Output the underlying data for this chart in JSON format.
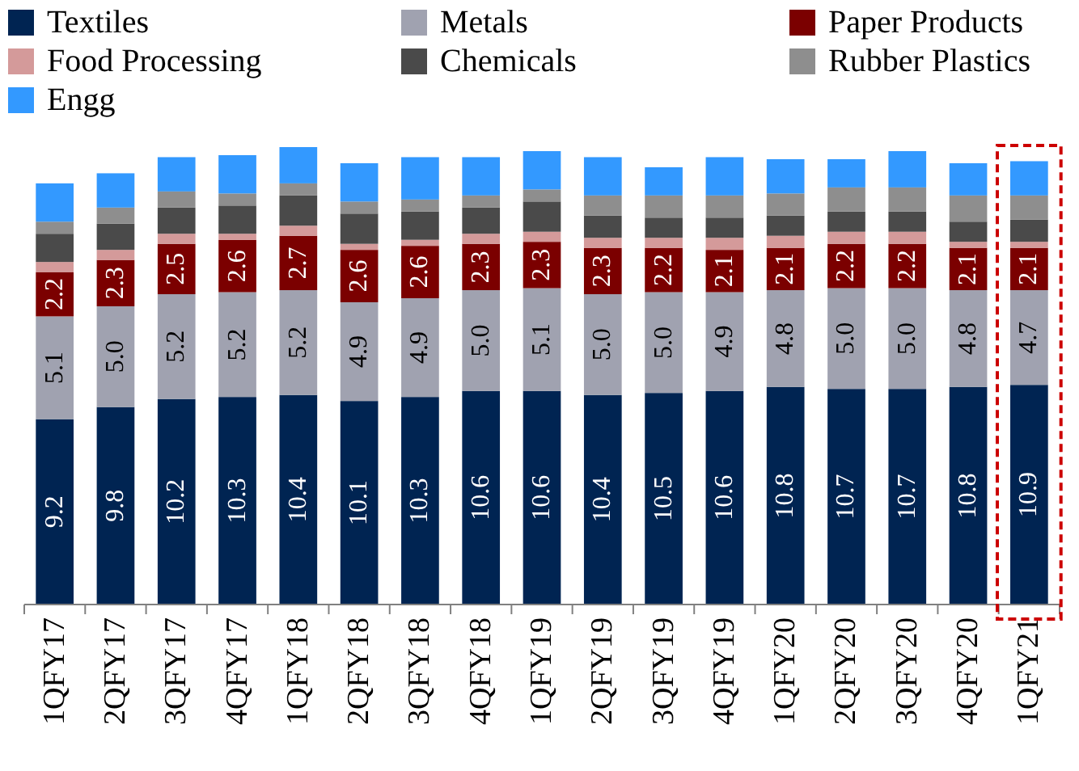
{
  "chart_data": {
    "type": "bar",
    "stacked": true,
    "legend": "top",
    "categories": [
      "1QFY17",
      "2QFY17",
      "3QFY17",
      "4QFY17",
      "1QFY18",
      "2QFY18",
      "3QFY18",
      "4QFY18",
      "1QFY19",
      "2QFY19",
      "3QFY19",
      "4QFY19",
      "1QFY20",
      "2QFY20",
      "3QFY20",
      "4QFY20",
      "1QFY21"
    ],
    "series": [
      {
        "name": "Textiles",
        "color": "#002452",
        "values": [
          9.2,
          9.8,
          10.2,
          10.3,
          10.4,
          10.1,
          10.3,
          10.6,
          10.6,
          10.4,
          10.5,
          10.6,
          10.8,
          10.7,
          10.7,
          10.8,
          10.9
        ],
        "value_labels": [
          "9.2",
          "9.8",
          "10.2",
          "10.3",
          "10.4",
          "10.1",
          "10.3",
          "10.6",
          "10.6",
          "10.4",
          "10.5",
          "10.6",
          "10.8",
          "10.7",
          "10.7",
          "10.8",
          "10.9"
        ]
      },
      {
        "name": "Metals",
        "color": "#a0a2b0",
        "values": [
          5.1,
          5.0,
          5.2,
          5.2,
          5.2,
          4.9,
          4.9,
          5.0,
          5.1,
          5.0,
          5.0,
          4.9,
          4.8,
          5.0,
          5.0,
          4.8,
          4.7
        ],
        "value_labels": [
          "5.1",
          "5.0",
          "5.2",
          "5.2",
          "5.2",
          "4.9",
          "4.9",
          "5.0",
          "5.1",
          "5.0",
          "5.0",
          "4.9",
          "4.8",
          "5.0",
          "5.0",
          "4.8",
          "4.7"
        ]
      },
      {
        "name": "Paper Products",
        "color": "#7b0000",
        "values": [
          2.2,
          2.3,
          2.5,
          2.6,
          2.7,
          2.6,
          2.6,
          2.3,
          2.3,
          2.3,
          2.2,
          2.1,
          2.1,
          2.2,
          2.2,
          2.1,
          2.1
        ],
        "value_labels": [
          "2.2",
          "2.3",
          "2.5",
          "2.6",
          "2.7",
          "2.6",
          "2.6",
          "2.3",
          "2.3",
          "2.3",
          "2.2",
          "2.1",
          "2.1",
          "2.2",
          "2.2",
          "2.1",
          "2.1"
        ]
      },
      {
        "name": "Food Processing",
        "color": "#d49a9a",
        "values": [
          0.5,
          0.5,
          0.5,
          0.3,
          0.5,
          0.3,
          0.3,
          0.5,
          0.5,
          0.5,
          0.5,
          0.6,
          0.6,
          0.6,
          0.6,
          0.3,
          0.3
        ]
      },
      {
        "name": "Chemicals",
        "color": "#4a4a4a",
        "values": [
          1.4,
          1.3,
          1.3,
          1.4,
          1.5,
          1.5,
          1.4,
          1.3,
          1.5,
          1.1,
          1.0,
          1.0,
          1.0,
          1.0,
          1.0,
          1.0,
          1.1
        ]
      },
      {
        "name": "Rubber Plastics",
        "color": "#8e8e8e",
        "values": [
          0.6,
          0.8,
          0.8,
          0.6,
          0.6,
          0.6,
          0.6,
          0.6,
          0.6,
          1.0,
          1.1,
          1.1,
          1.1,
          1.2,
          1.2,
          1.3,
          1.2
        ]
      },
      {
        "name": "Engg",
        "color": "#3399ff",
        "values": [
          1.9,
          1.7,
          1.7,
          1.9,
          1.8,
          1.9,
          2.1,
          1.9,
          1.9,
          1.9,
          1.4,
          1.9,
          1.7,
          1.4,
          1.8,
          1.6,
          1.7
        ]
      }
    ]
  }
}
